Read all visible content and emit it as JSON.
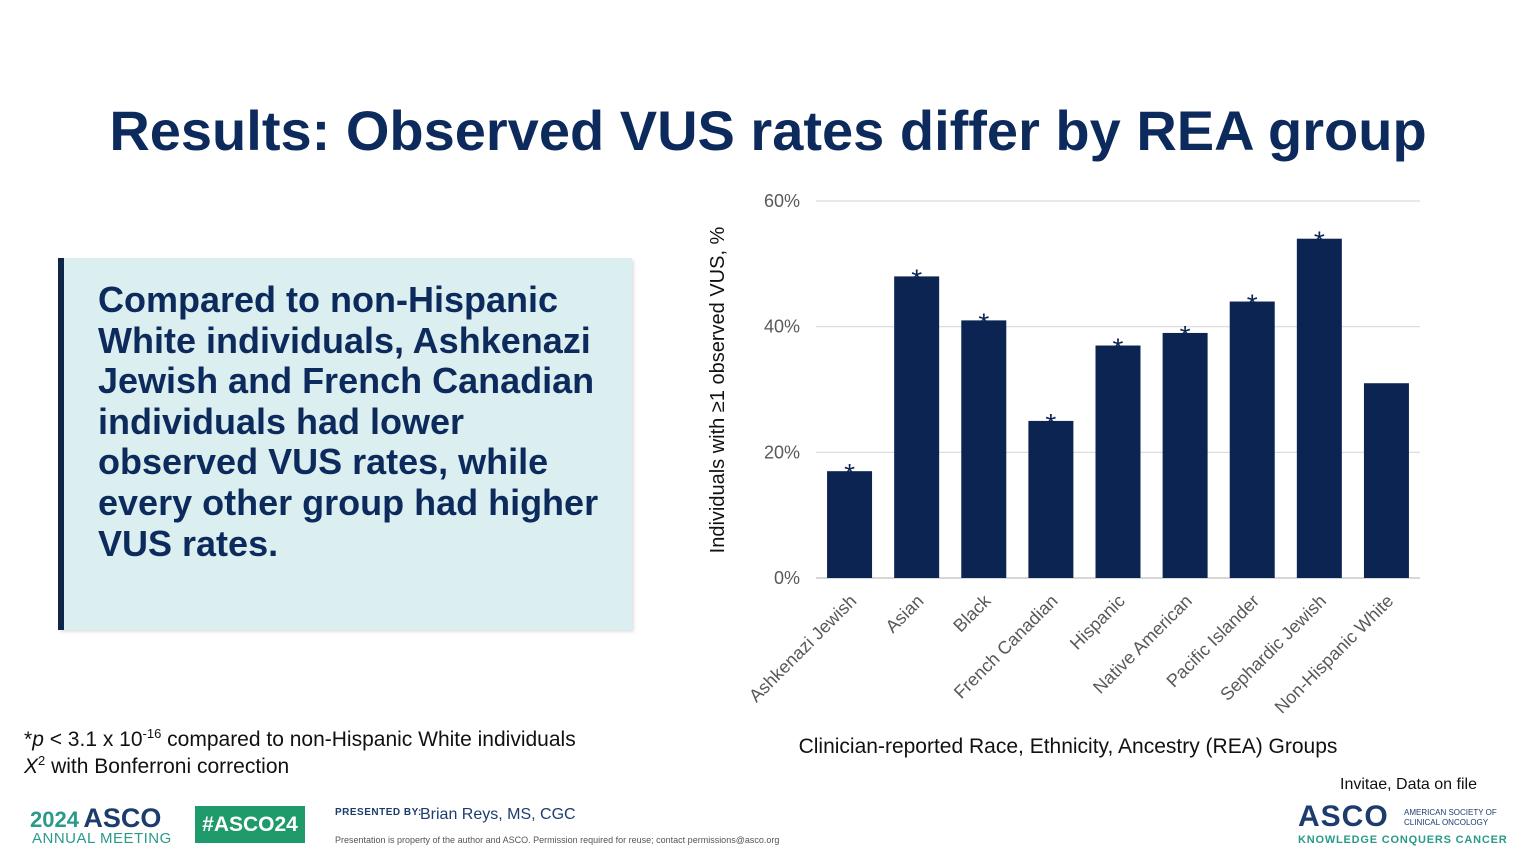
{
  "slide": {
    "title": "Results: Observed VUS rates differ by REA group",
    "callout": "Compared to non-Hispanic White individuals, Ashkenazi Jewish and French Canadian individuals had lower observed VUS rates, while every other group had higher VUS rates.",
    "footnote": {
      "star": "*",
      "p": "p",
      "threshold": " < 3.1 x 10",
      "exponent": "-16",
      "comparison": " compared to non-Hispanic White individuals",
      "test_symbol": "X",
      "test_exp": "2",
      "test_rest": " with Bonferroni correction"
    },
    "source": "Invitae, Data on file"
  },
  "footer": {
    "year": "2024",
    "asco": "ASCO",
    "meeting": "ANNUAL MEETING",
    "hashtag": "#ASCO24",
    "presented_by": "PRESENTED BY:",
    "presenter": "Brian Reys, MS, CGC",
    "property_note": "Presentation is property of the author and ASCO. Permission required for reuse; contact permissions@asco.org",
    "society": "ASCO",
    "society_full": "AMERICAN SOCIETY OF CLINICAL ONCOLOGY",
    "tagline": "KNOWLEDGE CONQUERS CANCER"
  },
  "chart_data": {
    "type": "bar",
    "categories": [
      "Ashkenazi Jewish",
      "Asian",
      "Black",
      "French Canadian",
      "Hispanic",
      "Native American",
      "Pacific Islander",
      "Sephardic Jewish",
      "Non-Hispanic White"
    ],
    "values": [
      17,
      48,
      41,
      25,
      37,
      39,
      44,
      54,
      31
    ],
    "significant": [
      true,
      true,
      true,
      true,
      true,
      true,
      true,
      true,
      false
    ],
    "marker": "*",
    "ylabel": "Individuals with ≥1 observed VUS, %",
    "xlabel": "Clinician-reported Race, Ethnicity, Ancestry (REA) Groups",
    "ylim": [
      0,
      60
    ],
    "yticks": [
      0,
      20,
      40,
      60
    ],
    "ytick_labels": [
      "0%",
      "20%",
      "40%",
      "60%"
    ],
    "grid": true,
    "bar_color": "#0b2452"
  }
}
